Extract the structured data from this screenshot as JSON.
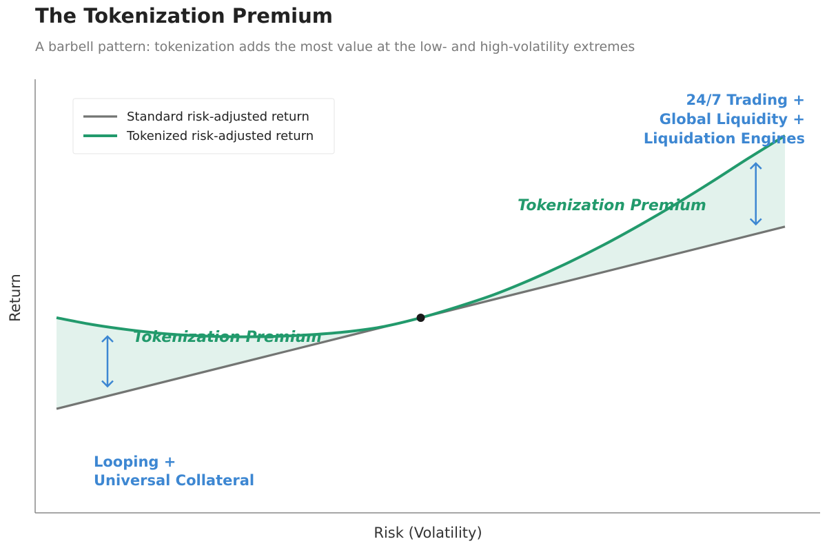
{
  "chart_data": {
    "type": "line",
    "title": "The Tokenization Premium",
    "subtitle": "A barbell pattern: tokenization adds the most value at the low- and high-volatility extremes",
    "xlabel": "Risk (Volatility)",
    "ylabel": "Return",
    "ticks_shown": false,
    "grid": false,
    "legend_position": "top-left",
    "series": [
      {
        "name": "Standard risk-adjusted return",
        "color": "#737573",
        "x": [
          0,
          0.5,
          1
        ],
        "y": [
          0.24,
          0.45,
          0.66
        ]
      },
      {
        "name": "Tokenized risk-adjusted return",
        "color": "#229a6c",
        "x": [
          0,
          0.05,
          0.1,
          0.15,
          0.2,
          0.25,
          0.3,
          0.35,
          0.4,
          0.45,
          0.5,
          0.55,
          0.6,
          0.65,
          0.7,
          0.75,
          0.8,
          0.85,
          0.9,
          0.95,
          1
        ],
        "y": [
          0.45,
          0.434,
          0.422,
          0.413,
          0.408,
          0.406,
          0.407,
          0.411,
          0.418,
          0.43,
          0.45,
          0.475,
          0.503,
          0.537,
          0.575,
          0.617,
          0.663,
          0.712,
          0.764,
          0.818,
          0.87
        ]
      }
    ],
    "fill_between": {
      "color": "#229a6c",
      "opacity": 0.13
    },
    "crossover_point": {
      "x": 0.5,
      "y": 0.45
    },
    "annotations": [
      {
        "id": "premium-left",
        "text": "Tokenization Premium",
        "color": "#229a6c"
      },
      {
        "id": "premium-right",
        "text": "Tokenization Premium",
        "color": "#229a6c"
      },
      {
        "id": "note-left",
        "lines": [
          "Looping +",
          "Universal Collateral"
        ],
        "color": "#3d87d2"
      },
      {
        "id": "note-right",
        "lines": [
          "24/7 Trading +",
          "Global Liquidity +",
          "Liquidation Engines"
        ],
        "color": "#3d87d2"
      }
    ],
    "gap_arrows": [
      {
        "id": "left",
        "x": 0.07,
        "color": "#3d87d2"
      },
      {
        "id": "right",
        "x": 0.96,
        "color": "#3d87d2"
      }
    ]
  }
}
